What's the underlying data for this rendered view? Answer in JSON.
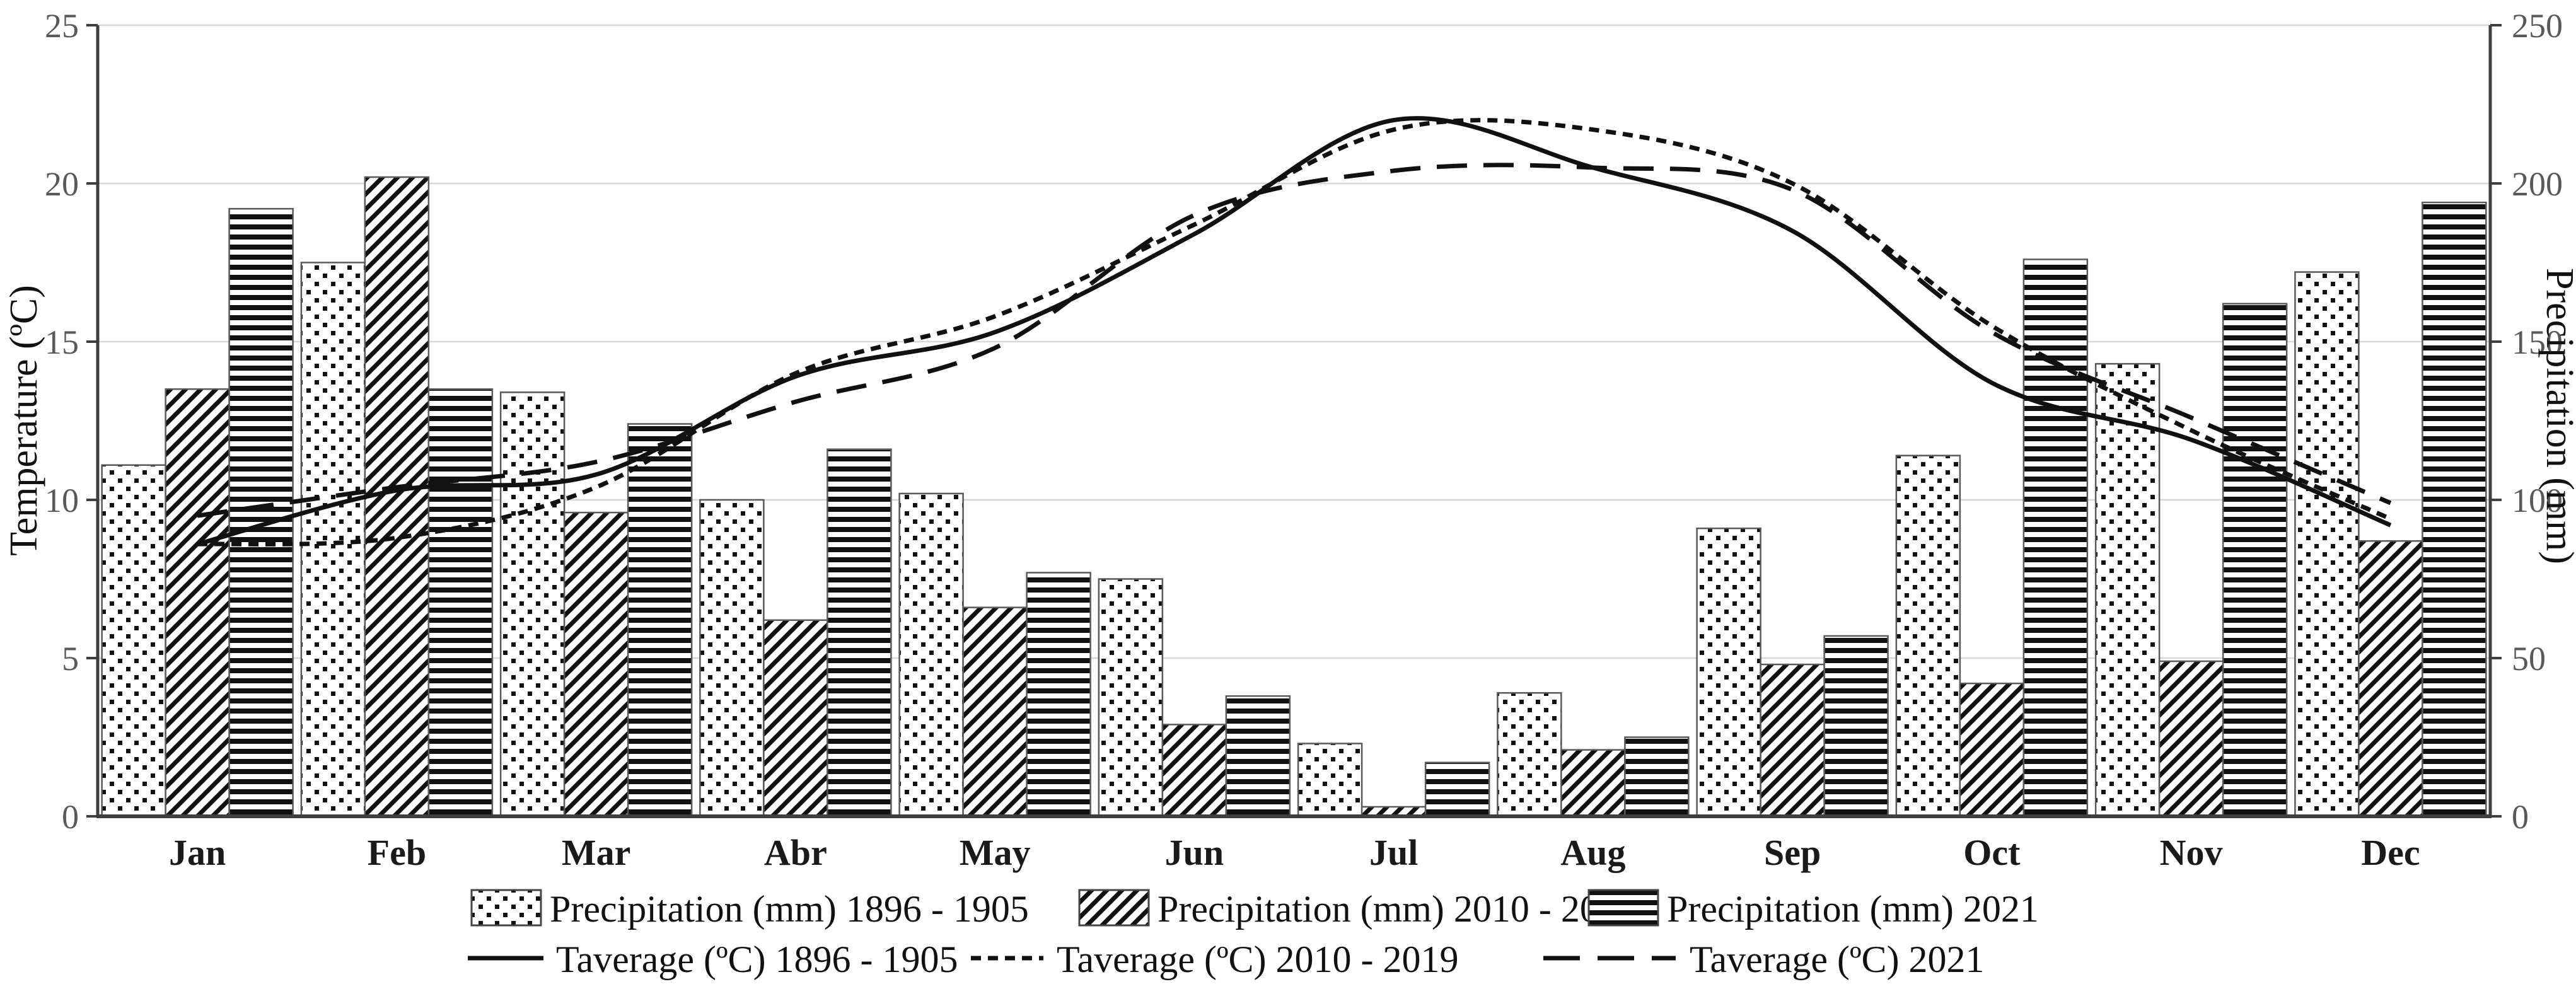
{
  "chart_data": {
    "type": "bar+line-combo",
    "title": "",
    "categories": [
      "Jan",
      "Feb",
      "Mar",
      "Abr",
      "May",
      "Jun",
      "Jul",
      "Aug",
      "Sep",
      "Oct",
      "Nov",
      "Dec"
    ],
    "bar_series": [
      {
        "name": "Precipitation (mm) 1896 - 1905",
        "pattern": "dots",
        "values": [
          111,
          175,
          134,
          100,
          102,
          75,
          23,
          39,
          91,
          114,
          143,
          172
        ]
      },
      {
        "name": "Precipitation (mm) 2010 - 2019",
        "pattern": "diagonal-hatch",
        "values": [
          135,
          202,
          96,
          62,
          66,
          29,
          3,
          21,
          48,
          42,
          49,
          87
        ]
      },
      {
        "name": "Precipitation (mm) 2021",
        "pattern": "horizontal-stripes",
        "values": [
          192,
          135,
          124,
          116,
          77,
          38,
          17,
          25,
          57,
          176,
          162,
          194
        ]
      }
    ],
    "line_series": [
      {
        "name": "Taverage (ºC) 1896 - 1905",
        "style": "solid",
        "values": [
          8.6,
          10.3,
          10.8,
          13.9,
          15.3,
          18.4,
          22.0,
          20.5,
          18.5,
          13.7,
          11.9,
          9.2
        ]
      },
      {
        "name": "Taverage (ºC) 2010 - 2019",
        "style": "dashed-small",
        "values": [
          8.6,
          8.8,
          10.4,
          14.0,
          15.8,
          18.7,
          21.7,
          21.7,
          20.0,
          15.5,
          12.2,
          9.4
        ]
      },
      {
        "name": "Taverage (ºC) 2021",
        "style": "dashed-long",
        "values": [
          9.5,
          10.4,
          11.2,
          13.1,
          14.8,
          19.0,
          20.4,
          20.5,
          19.8,
          15.3,
          12.6,
          9.9
        ]
      }
    ],
    "left_axis": {
      "title": "Temperature (ºC)",
      "min": 0,
      "max": 25,
      "ticks": [
        0,
        5,
        10,
        15,
        20,
        25
      ]
    },
    "right_axis": {
      "title": "Precipitation (mm)",
      "min": 0,
      "max": 250,
      "ticks": [
        0,
        50,
        100,
        150,
        200,
        250
      ]
    },
    "grid": true,
    "legend_position": "bottom"
  },
  "colors": {
    "ink": "#111111",
    "grid": "#d8d8d8",
    "axis": "#3f3f3f",
    "bar_outline": "#595959",
    "tick_label": "#595959",
    "background": "#ffffff"
  }
}
